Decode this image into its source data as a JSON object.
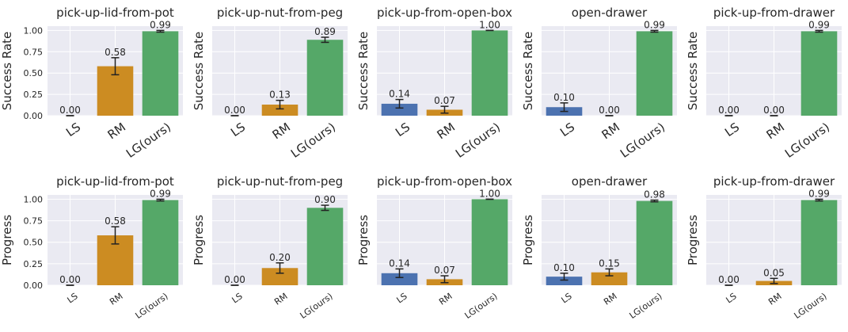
{
  "colors": {
    "panel_bg": "#eaeaf2",
    "grid": "#ffffff",
    "LS": "#4c72b0",
    "RM": "#dd8452",
    "RM_fill": "#cc8c22",
    "LG(ours)": "#55a868",
    "error_bar": "#222222"
  },
  "chart_data": [
    {
      "type": "bar",
      "row": "success",
      "title": "pick-up-lid-from-pot",
      "ylabel": "Success Rate",
      "ylim": [
        0,
        1.05
      ],
      "yticks": [
        "0.00",
        "0.25",
        "0.50",
        "0.75",
        "1.00"
      ],
      "grid": true,
      "categories": [
        "LS",
        "RM",
        "LG(ours)"
      ],
      "values": [
        0.0,
        0.58,
        0.99
      ],
      "labels": [
        "0.00",
        "0.58",
        "0.99"
      ],
      "errors": [
        0.0,
        0.1,
        0.01
      ]
    },
    {
      "type": "bar",
      "row": "success",
      "title": "pick-up-nut-from-peg",
      "ylabel": "Success Rate",
      "ylim": [
        0,
        1.05
      ],
      "yticks": [],
      "grid": true,
      "categories": [
        "LS",
        "RM",
        "LG(ours)"
      ],
      "values": [
        0.0,
        0.13,
        0.89
      ],
      "labels": [
        "0.00",
        "0.13",
        "0.89"
      ],
      "errors": [
        0.0,
        0.05,
        0.03
      ]
    },
    {
      "type": "bar",
      "row": "success",
      "title": "pick-up-from-open-box",
      "ylabel": "Success Rate",
      "ylim": [
        0,
        1.05
      ],
      "yticks": [],
      "grid": true,
      "categories": [
        "LS",
        "RM",
        "LG(ours)"
      ],
      "values": [
        0.14,
        0.07,
        1.0
      ],
      "labels": [
        "0.14",
        "0.07",
        "1.00"
      ],
      "errors": [
        0.05,
        0.04,
        0.0
      ]
    },
    {
      "type": "bar",
      "row": "success",
      "title": "open-drawer",
      "ylabel": "Success Rate",
      "ylim": [
        0,
        1.05
      ],
      "yticks": [],
      "grid": true,
      "categories": [
        "LS",
        "RM",
        "LG(ours)"
      ],
      "values": [
        0.1,
        0.0,
        0.99
      ],
      "labels": [
        "0.10",
        "0.00",
        "0.99"
      ],
      "errors": [
        0.05,
        0.0,
        0.01
      ]
    },
    {
      "type": "bar",
      "row": "success",
      "title": "pick-up-from-drawer",
      "ylabel": "Success Rate",
      "ylim": [
        0,
        1.05
      ],
      "yticks": [],
      "grid": true,
      "categories": [
        "LS",
        "RM",
        "LG(ours)"
      ],
      "values": [
        0.0,
        0.0,
        0.99
      ],
      "labels": [
        "0.00",
        "0.00",
        "0.99"
      ],
      "errors": [
        0.0,
        0.0,
        0.01
      ]
    },
    {
      "type": "bar",
      "row": "progress",
      "title": "pick-up-lid-from-pot",
      "ylabel": "Progress",
      "ylim": [
        0,
        1.05
      ],
      "yticks": [
        "0.00",
        "0.25",
        "0.50",
        "0.75",
        "1.00"
      ],
      "grid": true,
      "categories": [
        "LS",
        "RM",
        "LG(ours)"
      ],
      "values": [
        0.0,
        0.58,
        0.99
      ],
      "labels": [
        "0.00",
        "0.58",
        "0.99"
      ],
      "errors": [
        0.0,
        0.1,
        0.01
      ]
    },
    {
      "type": "bar",
      "row": "progress",
      "title": "pick-up-nut-from-peg",
      "ylabel": "Progress",
      "ylim": [
        0,
        1.05
      ],
      "yticks": [],
      "grid": true,
      "categories": [
        "LS",
        "RM",
        "LG(ours)"
      ],
      "values": [
        0.0,
        0.2,
        0.9
      ],
      "labels": [
        "0.00",
        "0.20",
        "0.90"
      ],
      "errors": [
        0.0,
        0.06,
        0.03
      ]
    },
    {
      "type": "bar",
      "row": "progress",
      "title": "pick-up-from-open-box",
      "ylabel": "Progress",
      "ylim": [
        0,
        1.05
      ],
      "yticks": [],
      "grid": true,
      "categories": [
        "LS",
        "RM",
        "LG(ours)"
      ],
      "values": [
        0.14,
        0.07,
        1.0
      ],
      "labels": [
        "0.14",
        "0.07",
        "1.00"
      ],
      "errors": [
        0.05,
        0.04,
        0.0
      ]
    },
    {
      "type": "bar",
      "row": "progress",
      "title": "open-drawer",
      "ylabel": "Progress",
      "ylim": [
        0,
        1.05
      ],
      "yticks": [],
      "grid": true,
      "categories": [
        "LS",
        "RM",
        "LG(ours)"
      ],
      "values": [
        0.1,
        0.15,
        0.98
      ],
      "labels": [
        "0.10",
        "0.15",
        "0.98"
      ],
      "errors": [
        0.04,
        0.04,
        0.01
      ]
    },
    {
      "type": "bar",
      "row": "progress",
      "title": "pick-up-from-drawer",
      "ylabel": "Progress",
      "ylim": [
        0,
        1.05
      ],
      "yticks": [],
      "grid": true,
      "categories": [
        "LS",
        "RM",
        "LG(ours)"
      ],
      "values": [
        0.0,
        0.05,
        0.99
      ],
      "labels": [
        "0.00",
        "0.05",
        "0.99"
      ],
      "errors": [
        0.0,
        0.03,
        0.01
      ]
    }
  ]
}
